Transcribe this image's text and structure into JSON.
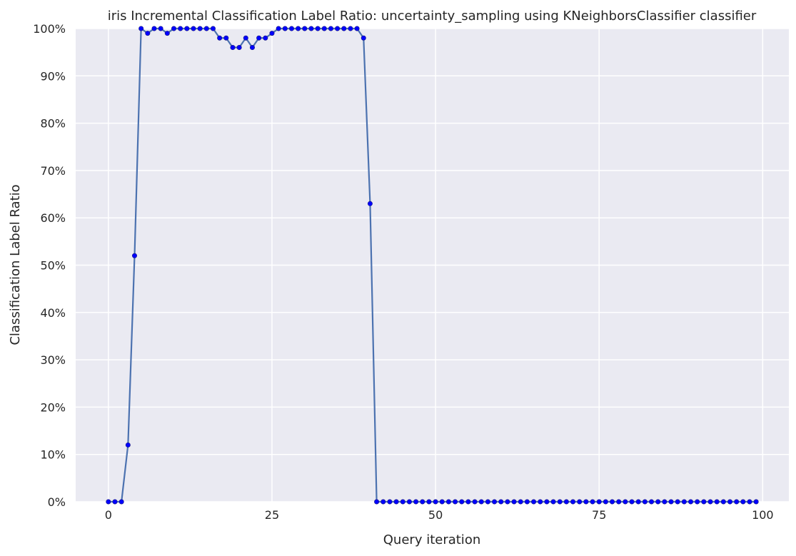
{
  "chart_data": {
    "type": "line",
    "title": "iris Incremental Classification Label Ratio: uncertainty_sampling using KNeighborsClassifier classifier",
    "xlabel": "Query iteration",
    "ylabel": "Classification Label Ratio",
    "xlim": [
      -5,
      104
    ],
    "ylim": [
      0,
      100
    ],
    "xticks": [
      0,
      25,
      50,
      75,
      100
    ],
    "xtick_labels": [
      "0",
      "25",
      "50",
      "75",
      "100"
    ],
    "yticks": [
      0,
      10,
      20,
      30,
      40,
      50,
      60,
      70,
      80,
      90,
      100
    ],
    "ytick_labels": [
      "0%",
      "10%",
      "20%",
      "30%",
      "40%",
      "50%",
      "60%",
      "70%",
      "80%",
      "90%",
      "100%"
    ],
    "grid": true,
    "background": "#eaeaf2",
    "line_color": "#4c72b0",
    "marker_color": "#0000ff",
    "series": [
      {
        "x": [
          0,
          1,
          2,
          3,
          4,
          5,
          6,
          7,
          8,
          9,
          10,
          11,
          12,
          13,
          14,
          15,
          16,
          17,
          18,
          19,
          20,
          21,
          22,
          23,
          24,
          25,
          26,
          27,
          28,
          29,
          30,
          31,
          32,
          33,
          34,
          35,
          36,
          37,
          38,
          39,
          40,
          41,
          42,
          43,
          44,
          45,
          46,
          47,
          48,
          49,
          50,
          51,
          52,
          53,
          54,
          55,
          56,
          57,
          58,
          59,
          60,
          61,
          62,
          63,
          64,
          65,
          66,
          67,
          68,
          69,
          70,
          71,
          72,
          73,
          74,
          75,
          76,
          77,
          78,
          79,
          80,
          81,
          82,
          83,
          84,
          85,
          86,
          87,
          88,
          89,
          90,
          91,
          92,
          93,
          94,
          95,
          96,
          97,
          98,
          99
        ],
        "y": [
          0,
          0,
          0,
          12,
          52,
          100,
          99,
          100,
          100,
          99,
          100,
          100,
          100,
          100,
          100,
          100,
          100,
          98,
          98,
          96,
          96,
          98,
          96,
          98,
          98,
          99,
          100,
          100,
          100,
          100,
          100,
          100,
          100,
          100,
          100,
          100,
          100,
          100,
          100,
          98,
          63,
          0,
          0,
          0,
          0,
          0,
          0,
          0,
          0,
          0,
          0,
          0,
          0,
          0,
          0,
          0,
          0,
          0,
          0,
          0,
          0,
          0,
          0,
          0,
          0,
          0,
          0,
          0,
          0,
          0,
          0,
          0,
          0,
          0,
          0,
          0,
          0,
          0,
          0,
          0,
          0,
          0,
          0,
          0,
          0,
          0,
          0,
          0,
          0,
          0,
          0,
          0,
          0,
          0,
          0,
          0,
          0,
          0,
          0,
          0
        ]
      }
    ]
  }
}
